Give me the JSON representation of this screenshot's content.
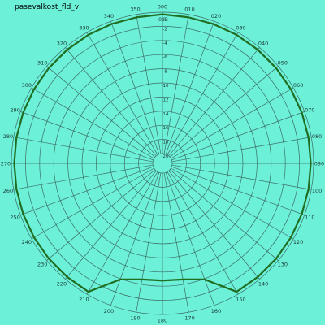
{
  "chart_data": {
    "type": "polar",
    "title": "pasevalkost_fld_v",
    "background": "#6df0d8",
    "grid_color": "#3c6e66",
    "series_color": "#1f6e22",
    "radial_unit_label": "0dB",
    "radial_range": [
      -20,
      0
    ],
    "radial_ticks": [
      "-2",
      "-4",
      "-6",
      "-8",
      "-10",
      "-12",
      "-14",
      "-16",
      "-18",
      "-20"
    ],
    "angle_labels": [
      "000",
      "010",
      "020",
      "030",
      "040",
      "050",
      "060",
      "070",
      "080",
      "090",
      "100",
      "110",
      "120",
      "130",
      "140",
      "150",
      "160",
      "170",
      "180",
      "190",
      "200",
      "210",
      "220",
      "230",
      "240",
      "250",
      "260",
      "270",
      "280",
      "290",
      "300",
      "310",
      "320",
      "330",
      "340",
      "350"
    ],
    "series": [
      {
        "angles_deg": [
          0,
          10,
          20,
          30,
          40,
          50,
          60,
          70,
          80,
          90,
          100,
          110,
          120,
          130,
          140,
          150,
          160,
          170,
          180,
          190,
          200,
          210,
          220,
          230,
          240,
          250,
          260,
          270,
          280,
          290,
          300,
          310,
          320,
          330,
          340,
          350,
          360
        ],
        "values_db": [
          -0.3,
          -0.4,
          -0.4,
          -0.4,
          -0.4,
          -0.4,
          -0.4,
          -0.4,
          -0.4,
          -0.4,
          -0.4,
          -0.4,
          -0.4,
          -0.4,
          -0.4,
          -0.4,
          -3.9,
          -4.7,
          -4.8,
          -4.7,
          -3.9,
          -0.4,
          -0.4,
          -0.4,
          -0.4,
          -0.4,
          -0.4,
          -0.4,
          -0.4,
          -0.4,
          -0.4,
          -0.4,
          -0.4,
          -0.4,
          -0.4,
          -0.4,
          -0.3
        ]
      }
    ]
  }
}
